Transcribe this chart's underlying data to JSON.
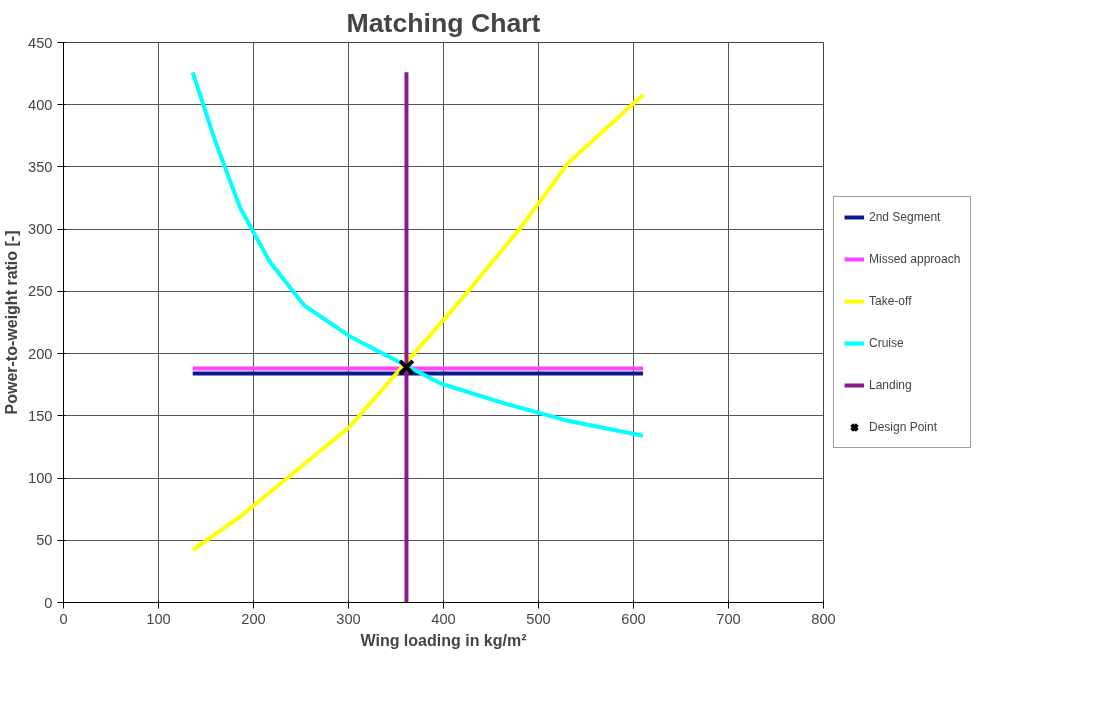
{
  "chart_data": {
    "type": "line",
    "title": "Matching Chart",
    "xlabel": "Wing loading in kg/m²",
    "ylabel": "Power-to-weight ratio [-]",
    "xlim": [
      0,
      800
    ],
    "xticks": [
      0,
      100,
      200,
      300,
      400,
      500,
      600,
      700,
      800
    ],
    "ylim": [
      0,
      450
    ],
    "yticks": [
      0,
      50,
      100,
      150,
      200,
      250,
      300,
      350,
      400,
      450
    ],
    "grid": true,
    "legend": "right",
    "marker": "none",
    "line_style": "solid",
    "series": [
      {
        "name": "2nd Segment",
        "color": "#0a1a8c",
        "x": [
          136,
          610
        ],
        "values": [
          184,
          184
        ]
      },
      {
        "name": "Missed approach",
        "color": "#ff44ff",
        "x": [
          136,
          610
        ],
        "values": [
          188,
          188
        ]
      },
      {
        "name": "Take-off",
        "color": "#ffff00",
        "x": [
          136,
          186,
          234,
          301,
          416,
          483,
          531,
          610
        ],
        "values": [
          42,
          69,
          99,
          141,
          241,
          303,
          353,
          408
        ]
      },
      {
        "name": "Cruise",
        "color": "#00ffff",
        "x": [
          136,
          160,
          186,
          217,
          253,
          301,
          397,
          464,
          531,
          610
        ],
        "values": [
          426,
          370,
          317,
          274,
          239,
          214,
          176,
          160,
          146,
          134
        ]
      },
      {
        "name": "Landing",
        "color": "#8b1a8b",
        "x": [
          361,
          361
        ],
        "values": [
          0,
          426
        ]
      },
      {
        "name": "Design Point",
        "type": "scatter",
        "marker": "cross",
        "color": "#000000",
        "x": [
          361
        ],
        "values": [
          189
        ]
      }
    ]
  }
}
